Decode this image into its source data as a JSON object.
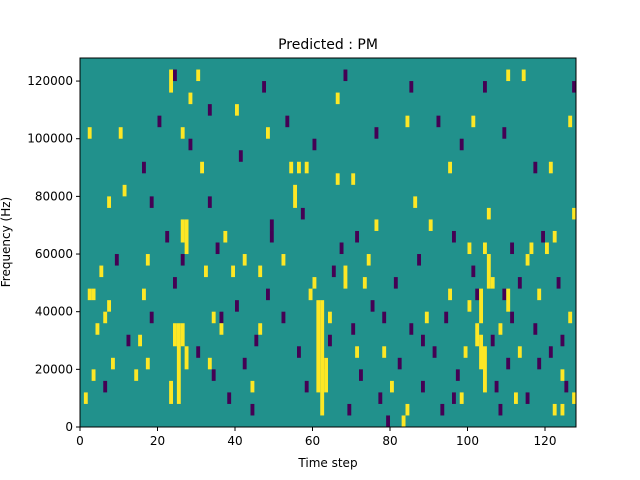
{
  "chart_data": {
    "type": "heatmap",
    "title": "Predicted : PM",
    "xlabel": "Time step",
    "ylabel": "Frequency (Hz)",
    "xlim": [
      0,
      128
    ],
    "ylim": [
      0,
      128000
    ],
    "x_ticks": [
      0,
      20,
      40,
      60,
      80,
      100,
      120
    ],
    "x_tick_labels": [
      "0",
      "20",
      "40",
      "60",
      "80",
      "100",
      "120"
    ],
    "y_ticks": [
      0,
      20000,
      40000,
      60000,
      80000,
      100000,
      120000
    ],
    "y_tick_labels": [
      "0",
      "20000",
      "40000",
      "60000",
      "80000",
      "100000",
      "120000"
    ],
    "colormap": "viridis",
    "value_levels": [
      -1,
      0,
      1
    ],
    "colors": {
      "low": "#440154",
      "mid": "#21918c",
      "high": "#fde725"
    },
    "background_value": 0,
    "row_height_hz": 4000,
    "cells_high": [
      [
        62,
        4000,
        44000
      ],
      [
        61,
        12000,
        44000
      ],
      [
        63,
        12000,
        24000
      ],
      [
        25,
        8000,
        36000
      ],
      [
        24,
        28000,
        36000
      ],
      [
        26,
        28000,
        36000
      ],
      [
        27,
        60000,
        72000
      ],
      [
        26,
        64000,
        72000
      ],
      [
        103,
        20000,
        32000
      ],
      [
        104,
        12000,
        28000
      ],
      [
        102,
        28000,
        36000
      ],
      [
        105,
        48000,
        60000
      ],
      [
        103,
        36000,
        48000
      ],
      [
        104,
        60000,
        64000
      ],
      [
        110,
        40000,
        48000
      ],
      [
        23,
        8000,
        16000
      ],
      [
        17,
        20000,
        24000
      ],
      [
        16,
        44000,
        48000
      ],
      [
        17,
        56000,
        60000
      ],
      [
        15,
        28000,
        32000
      ],
      [
        2,
        44000,
        48000
      ],
      [
        3,
        44000,
        48000
      ],
      [
        1,
        8000,
        12000
      ],
      [
        3,
        16000,
        20000
      ],
      [
        4,
        32000,
        36000
      ],
      [
        7,
        40000,
        44000
      ],
      [
        6,
        36000,
        40000
      ],
      [
        5,
        52000,
        56000
      ],
      [
        2,
        100000,
        104000
      ],
      [
        28,
        112000,
        116000
      ],
      [
        27,
        20000,
        28000
      ],
      [
        33,
        20000,
        24000
      ],
      [
        34,
        36000,
        40000
      ],
      [
        37,
        64000,
        68000
      ],
      [
        39,
        52000,
        56000
      ],
      [
        42,
        56000,
        60000
      ],
      [
        44,
        12000,
        16000
      ],
      [
        46,
        32000,
        36000
      ],
      [
        52,
        56000,
        60000
      ],
      [
        55,
        76000,
        84000
      ],
      [
        56,
        88000,
        92000
      ],
      [
        54,
        88000,
        92000
      ],
      [
        59,
        44000,
        48000
      ],
      [
        60,
        48000,
        52000
      ],
      [
        66,
        84000,
        88000
      ],
      [
        68,
        48000,
        56000
      ],
      [
        70,
        84000,
        88000
      ],
      [
        71,
        24000,
        28000
      ],
      [
        74,
        56000,
        60000
      ],
      [
        78,
        24000,
        28000
      ],
      [
        80,
        12000,
        16000
      ],
      [
        83,
        0,
        4000
      ],
      [
        84,
        4000,
        8000
      ],
      [
        89,
        36000,
        40000
      ],
      [
        90,
        68000,
        72000
      ],
      [
        95,
        44000,
        48000
      ],
      [
        99,
        24000,
        28000
      ],
      [
        98,
        8000,
        12000
      ],
      [
        100,
        40000,
        44000
      ],
      [
        105,
        72000,
        76000
      ],
      [
        108,
        32000,
        36000
      ],
      [
        106,
        48000,
        52000
      ],
      [
        113,
        24000,
        28000
      ],
      [
        112,
        8000,
        12000
      ],
      [
        115,
        56000,
        60000
      ],
      [
        118,
        44000,
        48000
      ],
      [
        120,
        60000,
        64000
      ],
      [
        124,
        16000,
        20000
      ],
      [
        126,
        36000,
        40000
      ],
      [
        127,
        72000,
        76000
      ],
      [
        126,
        104000,
        108000
      ],
      [
        124,
        4000,
        8000
      ],
      [
        127,
        8000,
        12000
      ],
      [
        116,
        60000,
        64000
      ],
      [
        101,
        104000,
        108000
      ],
      [
        95,
        88000,
        92000
      ],
      [
        84,
        104000,
        108000
      ],
      [
        76,
        68000,
        72000
      ],
      [
        66,
        112000,
        116000
      ],
      [
        58,
        88000,
        92000
      ],
      [
        48,
        100000,
        104000
      ],
      [
        40,
        108000,
        112000
      ],
      [
        30,
        120000,
        124000
      ],
      [
        23,
        116000,
        124000
      ],
      [
        14,
        16000,
        20000
      ],
      [
        11,
        80000,
        84000
      ],
      [
        10,
        100000,
        104000
      ],
      [
        8,
        20000,
        24000
      ],
      [
        7,
        76000,
        80000
      ],
      [
        26,
        100000,
        104000
      ],
      [
        64,
        36000,
        40000
      ],
      [
        32,
        52000,
        56000
      ],
      [
        46,
        52000,
        56000
      ],
      [
        73,
        48000,
        52000
      ],
      [
        86,
        76000,
        80000
      ],
      [
        100,
        60000,
        64000
      ],
      [
        110,
        120000,
        124000
      ],
      [
        114,
        120000,
        124000
      ],
      [
        121,
        88000,
        92000
      ],
      [
        122,
        64000,
        68000
      ],
      [
        122,
        4000,
        8000
      ],
      [
        31,
        88000,
        92000
      ],
      [
        36,
        32000,
        36000
      ]
    ],
    "cells_low": [
      [
        18,
        76000,
        80000
      ],
      [
        22,
        64000,
        68000
      ],
      [
        35,
        60000,
        64000
      ],
      [
        36,
        36000,
        40000
      ],
      [
        34,
        16000,
        20000
      ],
      [
        38,
        8000,
        12000
      ],
      [
        40,
        40000,
        44000
      ],
      [
        42,
        20000,
        24000
      ],
      [
        45,
        28000,
        32000
      ],
      [
        48,
        44000,
        48000
      ],
      [
        49,
        64000,
        68000
      ],
      [
        52,
        36000,
        40000
      ],
      [
        56,
        24000,
        28000
      ],
      [
        57,
        72000,
        76000
      ],
      [
        64,
        28000,
        32000
      ],
      [
        65,
        52000,
        56000
      ],
      [
        67,
        60000,
        64000
      ],
      [
        69,
        4000,
        8000
      ],
      [
        70,
        32000,
        36000
      ],
      [
        72,
        16000,
        20000
      ],
      [
        75,
        40000,
        44000
      ],
      [
        77,
        8000,
        12000
      ],
      [
        79,
        0,
        4000
      ],
      [
        81,
        48000,
        52000
      ],
      [
        82,
        20000,
        24000
      ],
      [
        85,
        32000,
        36000
      ],
      [
        87,
        56000,
        60000
      ],
      [
        88,
        12000,
        16000
      ],
      [
        91,
        24000,
        28000
      ],
      [
        93,
        4000,
        8000
      ],
      [
        94,
        36000,
        40000
      ],
      [
        96,
        64000,
        68000
      ],
      [
        97,
        16000,
        20000
      ],
      [
        101,
        52000,
        56000
      ],
      [
        106,
        28000,
        32000
      ],
      [
        107,
        12000,
        16000
      ],
      [
        108,
        4000,
        8000
      ],
      [
        109,
        44000,
        48000
      ],
      [
        110,
        20000,
        24000
      ],
      [
        111,
        36000,
        40000
      ],
      [
        113,
        48000,
        52000
      ],
      [
        115,
        8000,
        12000
      ],
      [
        117,
        32000,
        36000
      ],
      [
        119,
        64000,
        68000
      ],
      [
        121,
        24000,
        28000
      ],
      [
        123,
        48000,
        52000
      ],
      [
        125,
        12000,
        16000
      ],
      [
        16,
        88000,
        92000
      ],
      [
        20,
        104000,
        108000
      ],
      [
        24,
        120000,
        124000
      ],
      [
        28,
        96000,
        100000
      ],
      [
        33,
        108000,
        112000
      ],
      [
        41,
        92000,
        96000
      ],
      [
        47,
        116000,
        120000
      ],
      [
        53,
        104000,
        108000
      ],
      [
        60,
        96000,
        100000
      ],
      [
        68,
        120000,
        124000
      ],
      [
        76,
        100000,
        104000
      ],
      [
        85,
        116000,
        120000
      ],
      [
        92,
        104000,
        108000
      ],
      [
        98,
        96000,
        100000
      ],
      [
        104,
        116000,
        120000
      ],
      [
        109,
        100000,
        104000
      ],
      [
        117,
        88000,
        92000
      ],
      [
        127,
        116000,
        120000
      ],
      [
        12,
        28000,
        32000
      ],
      [
        18,
        36000,
        40000
      ],
      [
        6,
        12000,
        16000
      ],
      [
        9,
        56000,
        60000
      ],
      [
        24,
        48000,
        52000
      ],
      [
        30,
        24000,
        28000
      ],
      [
        44,
        4000,
        8000
      ],
      [
        58,
        12000,
        16000
      ],
      [
        63,
        20000,
        24000
      ],
      [
        71,
        64000,
        68000
      ],
      [
        78,
        36000,
        40000
      ],
      [
        88,
        28000,
        32000
      ],
      [
        96,
        8000,
        12000
      ],
      [
        102,
        44000,
        48000
      ],
      [
        111,
        60000,
        64000
      ],
      [
        118,
        20000,
        24000
      ],
      [
        124,
        28000,
        32000
      ],
      [
        49,
        68000,
        72000
      ],
      [
        33,
        76000,
        80000
      ],
      [
        26,
        56000,
        60000
      ]
    ]
  }
}
